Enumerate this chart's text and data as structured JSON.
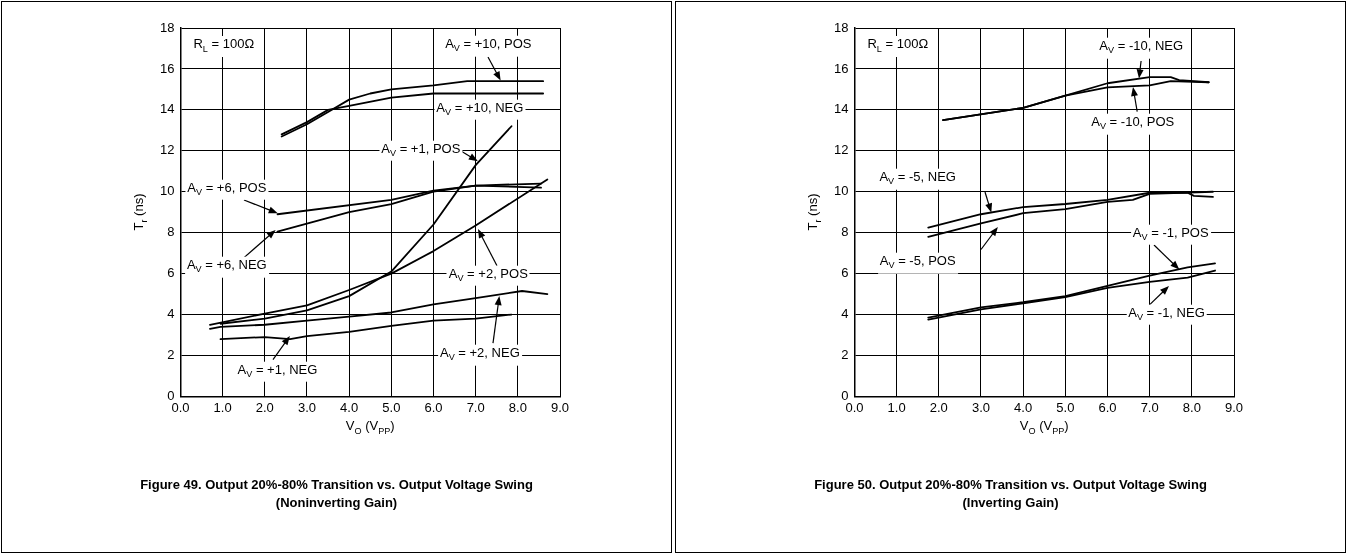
{
  "chart_data": [
    {
      "type": "line",
      "title": "Figure 49. Output 20%-80% Transition vs. Output Voltage Swing (Noninverting Gain)",
      "xlabel": "V$_{O}$ (V$_{PP}$)",
      "ylabel": "T$_{r}$ (ns)",
      "annotations": [
        "R$_{L}$ = 100Ω"
      ],
      "xlim": [
        0,
        9
      ],
      "ylim": [
        0,
        18
      ],
      "xticks": [
        {
          "value": 0,
          "label": "0.0"
        },
        {
          "value": 1,
          "label": "1.0"
        },
        {
          "value": 2,
          "label": "2.0"
        },
        {
          "value": 3,
          "label": "3.0"
        },
        {
          "value": 4,
          "label": "4.0"
        },
        {
          "value": 5,
          "label": "5.0"
        },
        {
          "value": 6,
          "label": "6.0"
        },
        {
          "value": 7,
          "label": "7.0"
        },
        {
          "value": 8,
          "label": "8.0"
        },
        {
          "value": 9,
          "label": "9.0"
        }
      ],
      "yticks": [
        0,
        2,
        4,
        6,
        8,
        10,
        12,
        14,
        16,
        18
      ],
      "grid": true,
      "legend": "bottom",
      "marker": "none",
      "line_style": "solid",
      "series": [
        {
          "name": "A$_{V}$ = +10, POS",
          "color": "#000000",
          "x": [
            2.4,
            3.0,
            3.5,
            4.0,
            4.5,
            5.0,
            6.0,
            6.8,
            8.6
          ],
          "values": [
            12.7,
            13.3,
            13.9,
            14.5,
            14.8,
            15.0,
            15.2,
            15.4,
            15.4
          ]
        },
        {
          "name": "A$_{V}$ = +10, NEG",
          "color": "#000000",
          "x": [
            2.4,
            3.0,
            3.5,
            4.0,
            5.0,
            6.0,
            8.6
          ],
          "values": [
            12.8,
            13.4,
            14.0,
            14.2,
            14.6,
            14.8,
            14.8
          ]
        },
        {
          "name": "A$_{V}$ = +1, POS",
          "color": "#000000",
          "x": [
            0.95,
            2.0,
            3.0,
            4.0,
            5.0,
            6.0,
            7.0,
            7.85
          ],
          "values": [
            3.55,
            3.8,
            4.2,
            4.9,
            6.1,
            8.4,
            11.3,
            13.2
          ]
        },
        {
          "name": "A$_{V}$ = +6, POS",
          "color": "#000000",
          "x": [
            2.3,
            5.0,
            6.0,
            7.0,
            8.55
          ],
          "values": [
            8.9,
            9.6,
            10.05,
            10.3,
            10.2
          ]
        },
        {
          "name": "A$_{V}$ = +6, NEG",
          "color": "#000000",
          "x": [
            2.3,
            4.0,
            5.0,
            6.0,
            7.0,
            8.55
          ],
          "values": [
            8.05,
            9.0,
            9.4,
            10.0,
            10.3,
            10.4
          ]
        },
        {
          "name": "A$_{V}$ = +2, POS",
          "color": "#000000",
          "x": [
            0.7,
            2.0,
            3.0,
            4.0,
            5.0,
            6.0,
            7.0,
            8.7
          ],
          "values": [
            3.5,
            4.05,
            4.45,
            5.2,
            6.0,
            7.1,
            8.35,
            10.6
          ]
        },
        {
          "name": "A$_{V}$ = +2, NEG",
          "color": "#000000",
          "x": [
            0.7,
            0.95,
            2.0,
            3.0,
            4.0,
            5.0,
            6.0,
            7.0,
            8.1,
            8.7
          ],
          "values": [
            3.3,
            3.4,
            3.5,
            3.7,
            3.9,
            4.1,
            4.5,
            4.8,
            5.15,
            5.0
          ]
        },
        {
          "name": "A$_{V}$ = +1, NEG",
          "color": "#000000",
          "x": [
            0.95,
            2.0,
            2.6,
            3.0,
            4.0,
            5.0,
            6.0,
            7.0,
            7.85
          ],
          "values": [
            2.8,
            2.9,
            2.8,
            2.95,
            3.15,
            3.45,
            3.7,
            3.8,
            4.0
          ]
        }
      ]
    },
    {
      "type": "line",
      "title": "Figure 50. Output 20%-80% Transition vs. Output Voltage Swing (Inverting Gain)",
      "xlabel": "V$_{O}$ (V$_{PP}$)",
      "ylabel": "T$_{r}$ (ns)",
      "annotations": [
        "R$_{L}$ = 100Ω"
      ],
      "xlim": [
        0,
        9
      ],
      "ylim": [
        0,
        18
      ],
      "xticks": [
        {
          "value": 0,
          "label": "0.0"
        },
        {
          "value": 1,
          "label": "1.0"
        },
        {
          "value": 2,
          "label": "2.0"
        },
        {
          "value": 3,
          "label": "3.0"
        },
        {
          "value": 4,
          "label": "4.0"
        },
        {
          "value": 5,
          "label": "5.0"
        },
        {
          "value": 6,
          "label": "6.0"
        },
        {
          "value": 7,
          "label": "7.0"
        },
        {
          "value": 8,
          "label": "8.0"
        },
        {
          "value": 9,
          "label": "9.0"
        }
      ],
      "yticks": [
        0,
        2,
        4,
        6,
        8,
        10,
        12,
        14,
        16,
        18
      ],
      "grid": true,
      "legend": "right",
      "marker": "none",
      "line_style": "solid",
      "series": [
        {
          "name": "A$_{V}$ = -10, NEG",
          "color": "#000000",
          "x": [
            2.1,
            4.0,
            5.0,
            6.0,
            7.0,
            7.5,
            7.7,
            8.4
          ],
          "values": [
            13.5,
            14.1,
            14.7,
            15.3,
            15.6,
            15.6,
            15.45,
            15.35
          ]
        },
        {
          "name": "A$_{V}$ = -10, POS",
          "color": "#000000",
          "x": [
            2.1,
            4.0,
            5.0,
            6.0,
            7.0,
            7.5,
            8.4
          ],
          "values": [
            13.5,
            14.1,
            14.7,
            15.1,
            15.2,
            15.4,
            15.35
          ]
        },
        {
          "name": "A$_{V}$ = -5, NEG",
          "color": "#000000",
          "x": [
            1.75,
            3.0,
            4.0,
            5.0,
            6.0,
            7.0,
            7.9,
            8.05,
            8.5
          ],
          "values": [
            8.25,
            8.9,
            9.25,
            9.4,
            9.6,
            9.95,
            9.95,
            9.8,
            9.75
          ]
        },
        {
          "name": "A$_{V}$ = -5, POS",
          "color": "#000000",
          "x": [
            1.75,
            3.0,
            4.0,
            5.0,
            6.0,
            6.6,
            7.0,
            8.5
          ],
          "values": [
            7.8,
            8.45,
            8.95,
            9.15,
            9.5,
            9.6,
            9.9,
            10.0
          ]
        },
        {
          "name": "A$_{V}$ = -1, POS",
          "color": "#000000",
          "x": [
            1.75,
            3.0,
            4.0,
            5.0,
            6.0,
            7.0,
            7.9,
            8.55
          ],
          "values": [
            3.85,
            4.35,
            4.6,
            4.9,
            5.4,
            5.9,
            6.3,
            6.5
          ]
        },
        {
          "name": "A$_{V}$ = -1, NEG",
          "color": "#000000",
          "x": [
            1.75,
            3.0,
            4.0,
            5.0,
            6.0,
            7.0,
            7.9,
            8.55
          ],
          "values": [
            3.75,
            4.25,
            4.55,
            4.85,
            5.3,
            5.6,
            5.8,
            6.15
          ]
        }
      ]
    }
  ]
}
